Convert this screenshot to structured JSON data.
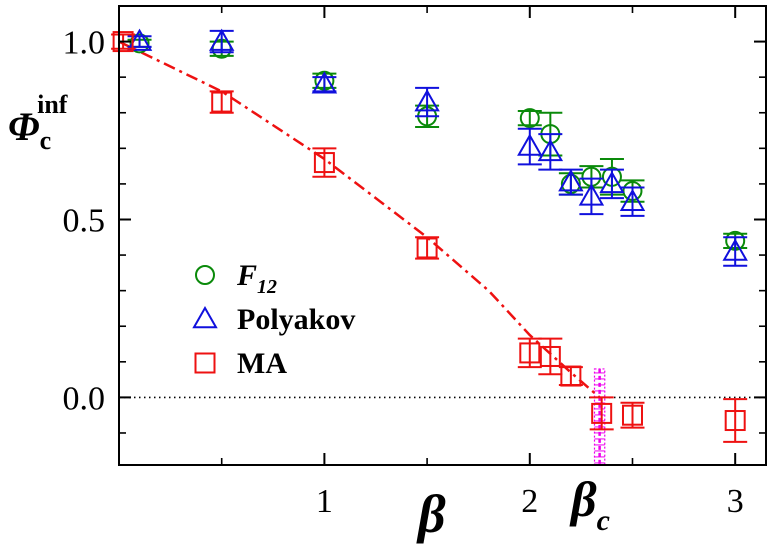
{
  "chart_data": {
    "type": "scatter",
    "title": "",
    "ylabel_main": "Φ",
    "ylabel_sub": "c",
    "ylabel_sup": "inf",
    "xlabel": "β",
    "critical_label_main": "β",
    "critical_label_sub": "c",
    "xlim": [
      0.0,
      3.15
    ],
    "ylim": [
      -0.19,
      1.1
    ],
    "x_ticks": [
      {
        "value": 1,
        "label": "1"
      },
      {
        "value": 2,
        "label": "2"
      },
      {
        "value": 3,
        "label": "3"
      }
    ],
    "x_minor_ticks": [
      0.5,
      1.5,
      2.5
    ],
    "y_ticks": [
      {
        "value": 0.0,
        "label": "0.0"
      },
      {
        "value": 0.5,
        "label": "0.5"
      },
      {
        "value": 1.0,
        "label": "1.0"
      }
    ],
    "y_minor_ticks": [
      -0.1,
      0.1,
      0.2,
      0.3,
      0.4,
      0.6,
      0.7,
      0.8,
      0.9
    ],
    "zero_line": 0.0,
    "beta_c": 2.34,
    "beta_c_halfwidth": 0.025,
    "beta_c_y_range": [
      -0.19,
      0.08
    ],
    "colors": {
      "F12": "#0a8a0a",
      "Polyakov": "#1010dd",
      "MA": "#ee1111",
      "beta_c": "#ee00ee",
      "axis": "#000000"
    },
    "legend": [
      {
        "key": "F12",
        "label_main": "F",
        "label_sub": "12",
        "marker": "circle"
      },
      {
        "key": "Polyakov",
        "label_main": "Polyakov",
        "label_sub": "",
        "marker": "triangle"
      },
      {
        "key": "MA",
        "label_main": "MA",
        "label_sub": "",
        "marker": "square"
      }
    ],
    "legend_position": "lower-left",
    "series": [
      {
        "key": "F12",
        "marker": "circle",
        "points": [
          {
            "x": 0.1,
            "y": 0.995,
            "err": 0.01
          },
          {
            "x": 0.5,
            "y": 0.98,
            "err": 0.02
          },
          {
            "x": 1.0,
            "y": 0.89,
            "err": 0.02
          },
          {
            "x": 1.5,
            "y": 0.79,
            "err": 0.03
          },
          {
            "x": 2.0,
            "y": 0.785,
            "err": 0.02
          },
          {
            "x": 2.1,
            "y": 0.74,
            "err": 0.06
          },
          {
            "x": 2.2,
            "y": 0.6,
            "err": 0.03
          },
          {
            "x": 2.3,
            "y": 0.62,
            "err": 0.03
          },
          {
            "x": 2.4,
            "y": 0.62,
            "err": 0.05
          },
          {
            "x": 2.5,
            "y": 0.58,
            "err": 0.03
          },
          {
            "x": 3.0,
            "y": 0.44,
            "err": 0.02
          }
        ]
      },
      {
        "key": "Polyakov",
        "marker": "triangle",
        "points": [
          {
            "x": 0.1,
            "y": 1.0,
            "err": 0.015
          },
          {
            "x": 0.5,
            "y": 1.0,
            "err": 0.03
          },
          {
            "x": 1.0,
            "y": 0.88,
            "err": 0.02
          },
          {
            "x": 1.5,
            "y": 0.83,
            "err": 0.04
          },
          {
            "x": 2.0,
            "y": 0.705,
            "err": 0.05
          },
          {
            "x": 2.1,
            "y": 0.69,
            "err": 0.05
          },
          {
            "x": 2.2,
            "y": 0.605,
            "err": 0.035
          },
          {
            "x": 2.3,
            "y": 0.565,
            "err": 0.05
          },
          {
            "x": 2.4,
            "y": 0.6,
            "err": 0.04
          },
          {
            "x": 2.5,
            "y": 0.55,
            "err": 0.04
          },
          {
            "x": 3.0,
            "y": 0.41,
            "err": 0.04
          }
        ]
      },
      {
        "key": "MA",
        "marker": "square",
        "points": [
          {
            "x": 0.02,
            "y": 1.0,
            "err": 0.02
          },
          {
            "x": 0.5,
            "y": 0.83,
            "err": 0.03
          },
          {
            "x": 1.0,
            "y": 0.66,
            "err": 0.04
          },
          {
            "x": 1.5,
            "y": 0.42,
            "err": 0.03
          },
          {
            "x": 2.0,
            "y": 0.125,
            "err": 0.04
          },
          {
            "x": 2.1,
            "y": 0.115,
            "err": 0.05
          },
          {
            "x": 2.2,
            "y": 0.06,
            "err": 0.025
          },
          {
            "x": 2.35,
            "y": -0.045,
            "err": 0.045
          },
          {
            "x": 2.5,
            "y": -0.05,
            "err": 0.035
          },
          {
            "x": 3.0,
            "y": -0.065,
            "err": 0.06
          }
        ]
      }
    ],
    "fit_curve": {
      "color": "#ee1111",
      "style": "dash-dot",
      "points": [
        {
          "x": 0.0,
          "y": 1.0
        },
        {
          "x": 0.5,
          "y": 0.86
        },
        {
          "x": 1.0,
          "y": 0.67
        },
        {
          "x": 1.5,
          "y": 0.45
        },
        {
          "x": 1.8,
          "y": 0.3
        },
        {
          "x": 2.0,
          "y": 0.175
        },
        {
          "x": 2.2,
          "y": 0.07
        },
        {
          "x": 2.34,
          "y": 0.0
        }
      ]
    }
  }
}
